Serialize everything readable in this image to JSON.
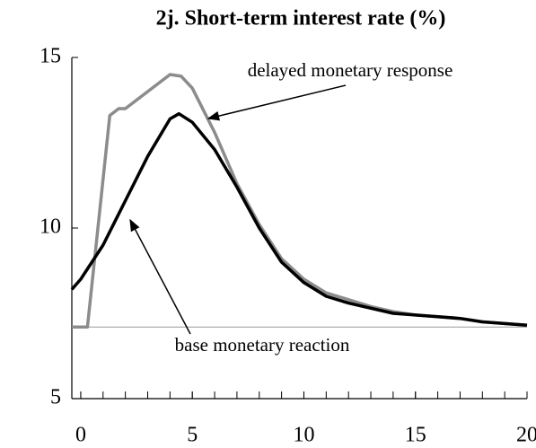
{
  "chart_data": {
    "type": "line",
    "title": "2j. Short-term interest rate (%)",
    "series": [
      {
        "name": "delayed monetary response",
        "color": "#8c8c8c",
        "x": [
          -0.4,
          0.3,
          1.3,
          1.7,
          2,
          3,
          4,
          4.5,
          5,
          6,
          7,
          8,
          9,
          10,
          11,
          12,
          13,
          14,
          15,
          16,
          17,
          18,
          19,
          20
        ],
        "values": [
          7.1,
          7.1,
          13.3,
          13.5,
          13.5,
          14.0,
          14.5,
          14.45,
          14.1,
          12.8,
          11.3,
          10.1,
          9.1,
          8.5,
          8.1,
          7.9,
          7.7,
          7.55,
          7.45,
          7.4,
          7.35,
          7.25,
          7.2,
          7.15
        ]
      },
      {
        "name": "base monetary reaction",
        "color": "#000000",
        "x": [
          -0.4,
          0,
          1,
          2,
          3,
          4,
          4.4,
          5,
          6,
          7,
          8,
          9,
          10,
          11,
          12,
          13,
          14,
          15,
          16,
          17,
          18,
          19,
          20
        ],
        "values": [
          8.2,
          8.5,
          9.5,
          10.8,
          12.1,
          13.2,
          13.35,
          13.1,
          12.3,
          11.2,
          10.0,
          9.0,
          8.4,
          8.0,
          7.8,
          7.65,
          7.5,
          7.45,
          7.4,
          7.35,
          7.25,
          7.2,
          7.15
        ]
      }
    ],
    "reference_line": 7.1,
    "xlim": [
      -0.4,
      20
    ],
    "xticks": [
      0,
      5,
      10,
      15,
      20
    ],
    "xminorticks": [
      0,
      1,
      2,
      3,
      4,
      5,
      6,
      7,
      8,
      9,
      10,
      11,
      12,
      13,
      14,
      15,
      16,
      17,
      18,
      19,
      20
    ],
    "ylim": [
      5,
      15
    ],
    "yticks": [
      5,
      10,
      15
    ]
  }
}
